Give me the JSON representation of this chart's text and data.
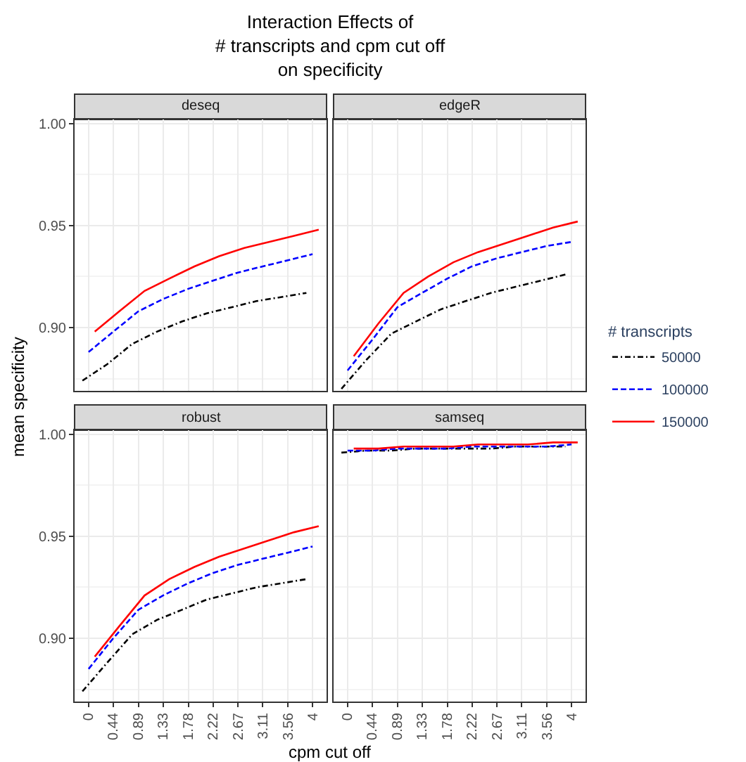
{
  "chart_data": [
    {
      "type": "line",
      "title": "deseq",
      "annotations": [
        "Interaction Effects of\n# transcripts and cpm cut off\non specificity"
      ],
      "ylabel": "mean specificity",
      "xlabel": "cpm cut off",
      "legend_title": "# transcripts",
      "legend": "right",
      "grid": true,
      "tick_labels": "y",
      "xlim": [
        -0.25,
        4.25
      ],
      "xticks": [
        0,
        0.44,
        0.89,
        1.33,
        1.78,
        2.22,
        2.67,
        3.11,
        3.56,
        4
      ],
      "ylim": [
        0.869,
        1.002
      ],
      "yticks": [
        {
          "value": 0.875,
          "label": null
        },
        {
          "value": 0.9,
          "label": "0.90"
        },
        {
          "value": 0.925,
          "label": null
        },
        0.95,
        {
          "value": 0.975,
          "label": null
        },
        {
          "value": 1,
          "label": "1.00"
        }
      ],
      "series": [
        {
          "name": "50000",
          "color": "#000000",
          "line_style": "dashdot",
          "x": [
            -0.11,
            0.33,
            0.78,
            1.22,
            1.67,
            2.11,
            2.56,
            3.0,
            3.45,
            3.89
          ],
          "values": [
            0.874,
            0.882,
            0.892,
            0.898,
            0.903,
            0.907,
            0.91,
            0.913,
            0.915,
            0.917
          ]
        },
        {
          "name": "100000",
          "color": "#0000ff",
          "line_style": "dashed",
          "x": [
            0,
            0.44,
            0.89,
            1.33,
            1.78,
            2.22,
            2.67,
            3.11,
            3.56,
            4
          ],
          "values": [
            0.888,
            0.898,
            0.908,
            0.914,
            0.919,
            0.923,
            0.927,
            0.93,
            0.933,
            0.936
          ]
        },
        {
          "name": "150000",
          "color": "#ff0000",
          "line_style": "solid",
          "x": [
            0.11,
            0.55,
            1.0,
            1.44,
            1.89,
            2.33,
            2.78,
            3.22,
            3.67,
            4.11
          ],
          "values": [
            0.898,
            0.908,
            0.918,
            0.924,
            0.93,
            0.935,
            0.939,
            0.942,
            0.945,
            0.948
          ]
        }
      ]
    },
    {
      "type": "line",
      "title": "edgeR",
      "grid": true,
      "tick_labels": false,
      "xlim": [
        -0.25,
        4.25
      ],
      "xticks": [
        0,
        0.44,
        0.89,
        1.33,
        1.78,
        2.22,
        2.67,
        3.11,
        3.56,
        4
      ],
      "ylim": [
        0.869,
        1.002
      ],
      "yticks": [
        {
          "value": 0.875,
          "label": null
        },
        0.9,
        {
          "value": 0.925,
          "label": null
        },
        0.95,
        {
          "value": 0.975,
          "label": null
        },
        1
      ],
      "series": [
        {
          "name": "50000",
          "color": "#000000",
          "line_style": "dashdot",
          "x": [
            -0.11,
            0.33,
            0.78,
            1.22,
            1.67,
            2.11,
            2.56,
            3.0,
            3.45,
            3.89
          ],
          "values": [
            0.87,
            0.884,
            0.897,
            0.903,
            0.909,
            0.913,
            0.917,
            0.92,
            0.923,
            0.926
          ]
        },
        {
          "name": "100000",
          "color": "#0000ff",
          "line_style": "dashed",
          "x": [
            0,
            0.44,
            0.89,
            1.33,
            1.78,
            2.22,
            2.67,
            3.11,
            3.56,
            4
          ],
          "values": [
            0.879,
            0.894,
            0.91,
            0.917,
            0.924,
            0.93,
            0.934,
            0.937,
            0.94,
            0.942
          ]
        },
        {
          "name": "150000",
          "color": "#ff0000",
          "line_style": "solid",
          "x": [
            0.11,
            0.55,
            1.0,
            1.44,
            1.89,
            2.33,
            2.78,
            3.22,
            3.67,
            4.11
          ],
          "values": [
            0.886,
            0.902,
            0.917,
            0.925,
            0.932,
            0.937,
            0.941,
            0.945,
            0.949,
            0.952
          ]
        }
      ]
    },
    {
      "type": "line",
      "title": "robust",
      "grid": true,
      "xlim": [
        -0.25,
        4.25
      ],
      "xticks": [
        0,
        0.44,
        0.89,
        1.33,
        1.78,
        2.22,
        2.67,
        3.11,
        3.56,
        4
      ],
      "ylim": [
        0.869,
        1.002
      ],
      "yticks": [
        {
          "value": 0.875,
          "label": null
        },
        {
          "value": 0.9,
          "label": "0.90"
        },
        {
          "value": 0.925,
          "label": null
        },
        0.95,
        {
          "value": 0.975,
          "label": null
        },
        {
          "value": 1,
          "label": "1.00"
        }
      ],
      "series": [
        {
          "name": "50000",
          "color": "#000000",
          "line_style": "dashdot",
          "x": [
            -0.11,
            0.33,
            0.78,
            1.22,
            1.67,
            2.11,
            2.56,
            3.0,
            3.45,
            3.89
          ],
          "values": [
            0.874,
            0.888,
            0.902,
            0.909,
            0.914,
            0.919,
            0.922,
            0.925,
            0.927,
            0.929
          ]
        },
        {
          "name": "100000",
          "color": "#0000ff",
          "line_style": "dashed",
          "x": [
            0,
            0.44,
            0.89,
            1.33,
            1.78,
            2.22,
            2.67,
            3.11,
            3.56,
            4
          ],
          "values": [
            0.885,
            0.9,
            0.914,
            0.921,
            0.927,
            0.932,
            0.936,
            0.939,
            0.942,
            0.945
          ]
        },
        {
          "name": "150000",
          "color": "#ff0000",
          "line_style": "solid",
          "x": [
            0.11,
            0.55,
            1.0,
            1.44,
            1.89,
            2.33,
            2.78,
            3.22,
            3.67,
            4.11
          ],
          "values": [
            0.891,
            0.906,
            0.921,
            0.929,
            0.935,
            0.94,
            0.944,
            0.948,
            0.952,
            0.955
          ]
        }
      ]
    },
    {
      "type": "line",
      "title": "samseq",
      "grid": true,
      "tick_labels": "x",
      "xlim": [
        -0.25,
        4.25
      ],
      "xticks": [
        0,
        0.44,
        0.89,
        1.33,
        1.78,
        2.22,
        2.67,
        3.11,
        3.56,
        4
      ],
      "ylim": [
        0.869,
        1.002
      ],
      "yticks": [
        {
          "value": 0.875,
          "label": null
        },
        0.9,
        {
          "value": 0.925,
          "label": null
        },
        0.95,
        {
          "value": 0.975,
          "label": null
        },
        1
      ],
      "series": [
        {
          "name": "50000",
          "color": "#000000",
          "line_style": "dashdot",
          "x": [
            -0.11,
            0.33,
            0.78,
            1.22,
            1.67,
            2.11,
            2.56,
            3.0,
            3.45,
            3.89
          ],
          "values": [
            0.991,
            0.992,
            0.992,
            0.993,
            0.993,
            0.993,
            0.993,
            0.994,
            0.994,
            0.994
          ]
        },
        {
          "name": "100000",
          "color": "#0000ff",
          "line_style": "dashed",
          "x": [
            0,
            0.44,
            0.89,
            1.33,
            1.78,
            2.22,
            2.67,
            3.11,
            3.56,
            4
          ],
          "values": [
            0.992,
            0.992,
            0.993,
            0.993,
            0.993,
            0.994,
            0.994,
            0.994,
            0.994,
            0.995
          ]
        },
        {
          "name": "150000",
          "color": "#ff0000",
          "line_style": "solid",
          "x": [
            0.11,
            0.55,
            1.0,
            1.44,
            1.89,
            2.33,
            2.78,
            3.22,
            3.67,
            4.11
          ],
          "values": [
            0.993,
            0.993,
            0.994,
            0.994,
            0.994,
            0.995,
            0.995,
            0.995,
            0.996,
            0.996
          ]
        }
      ]
    }
  ]
}
